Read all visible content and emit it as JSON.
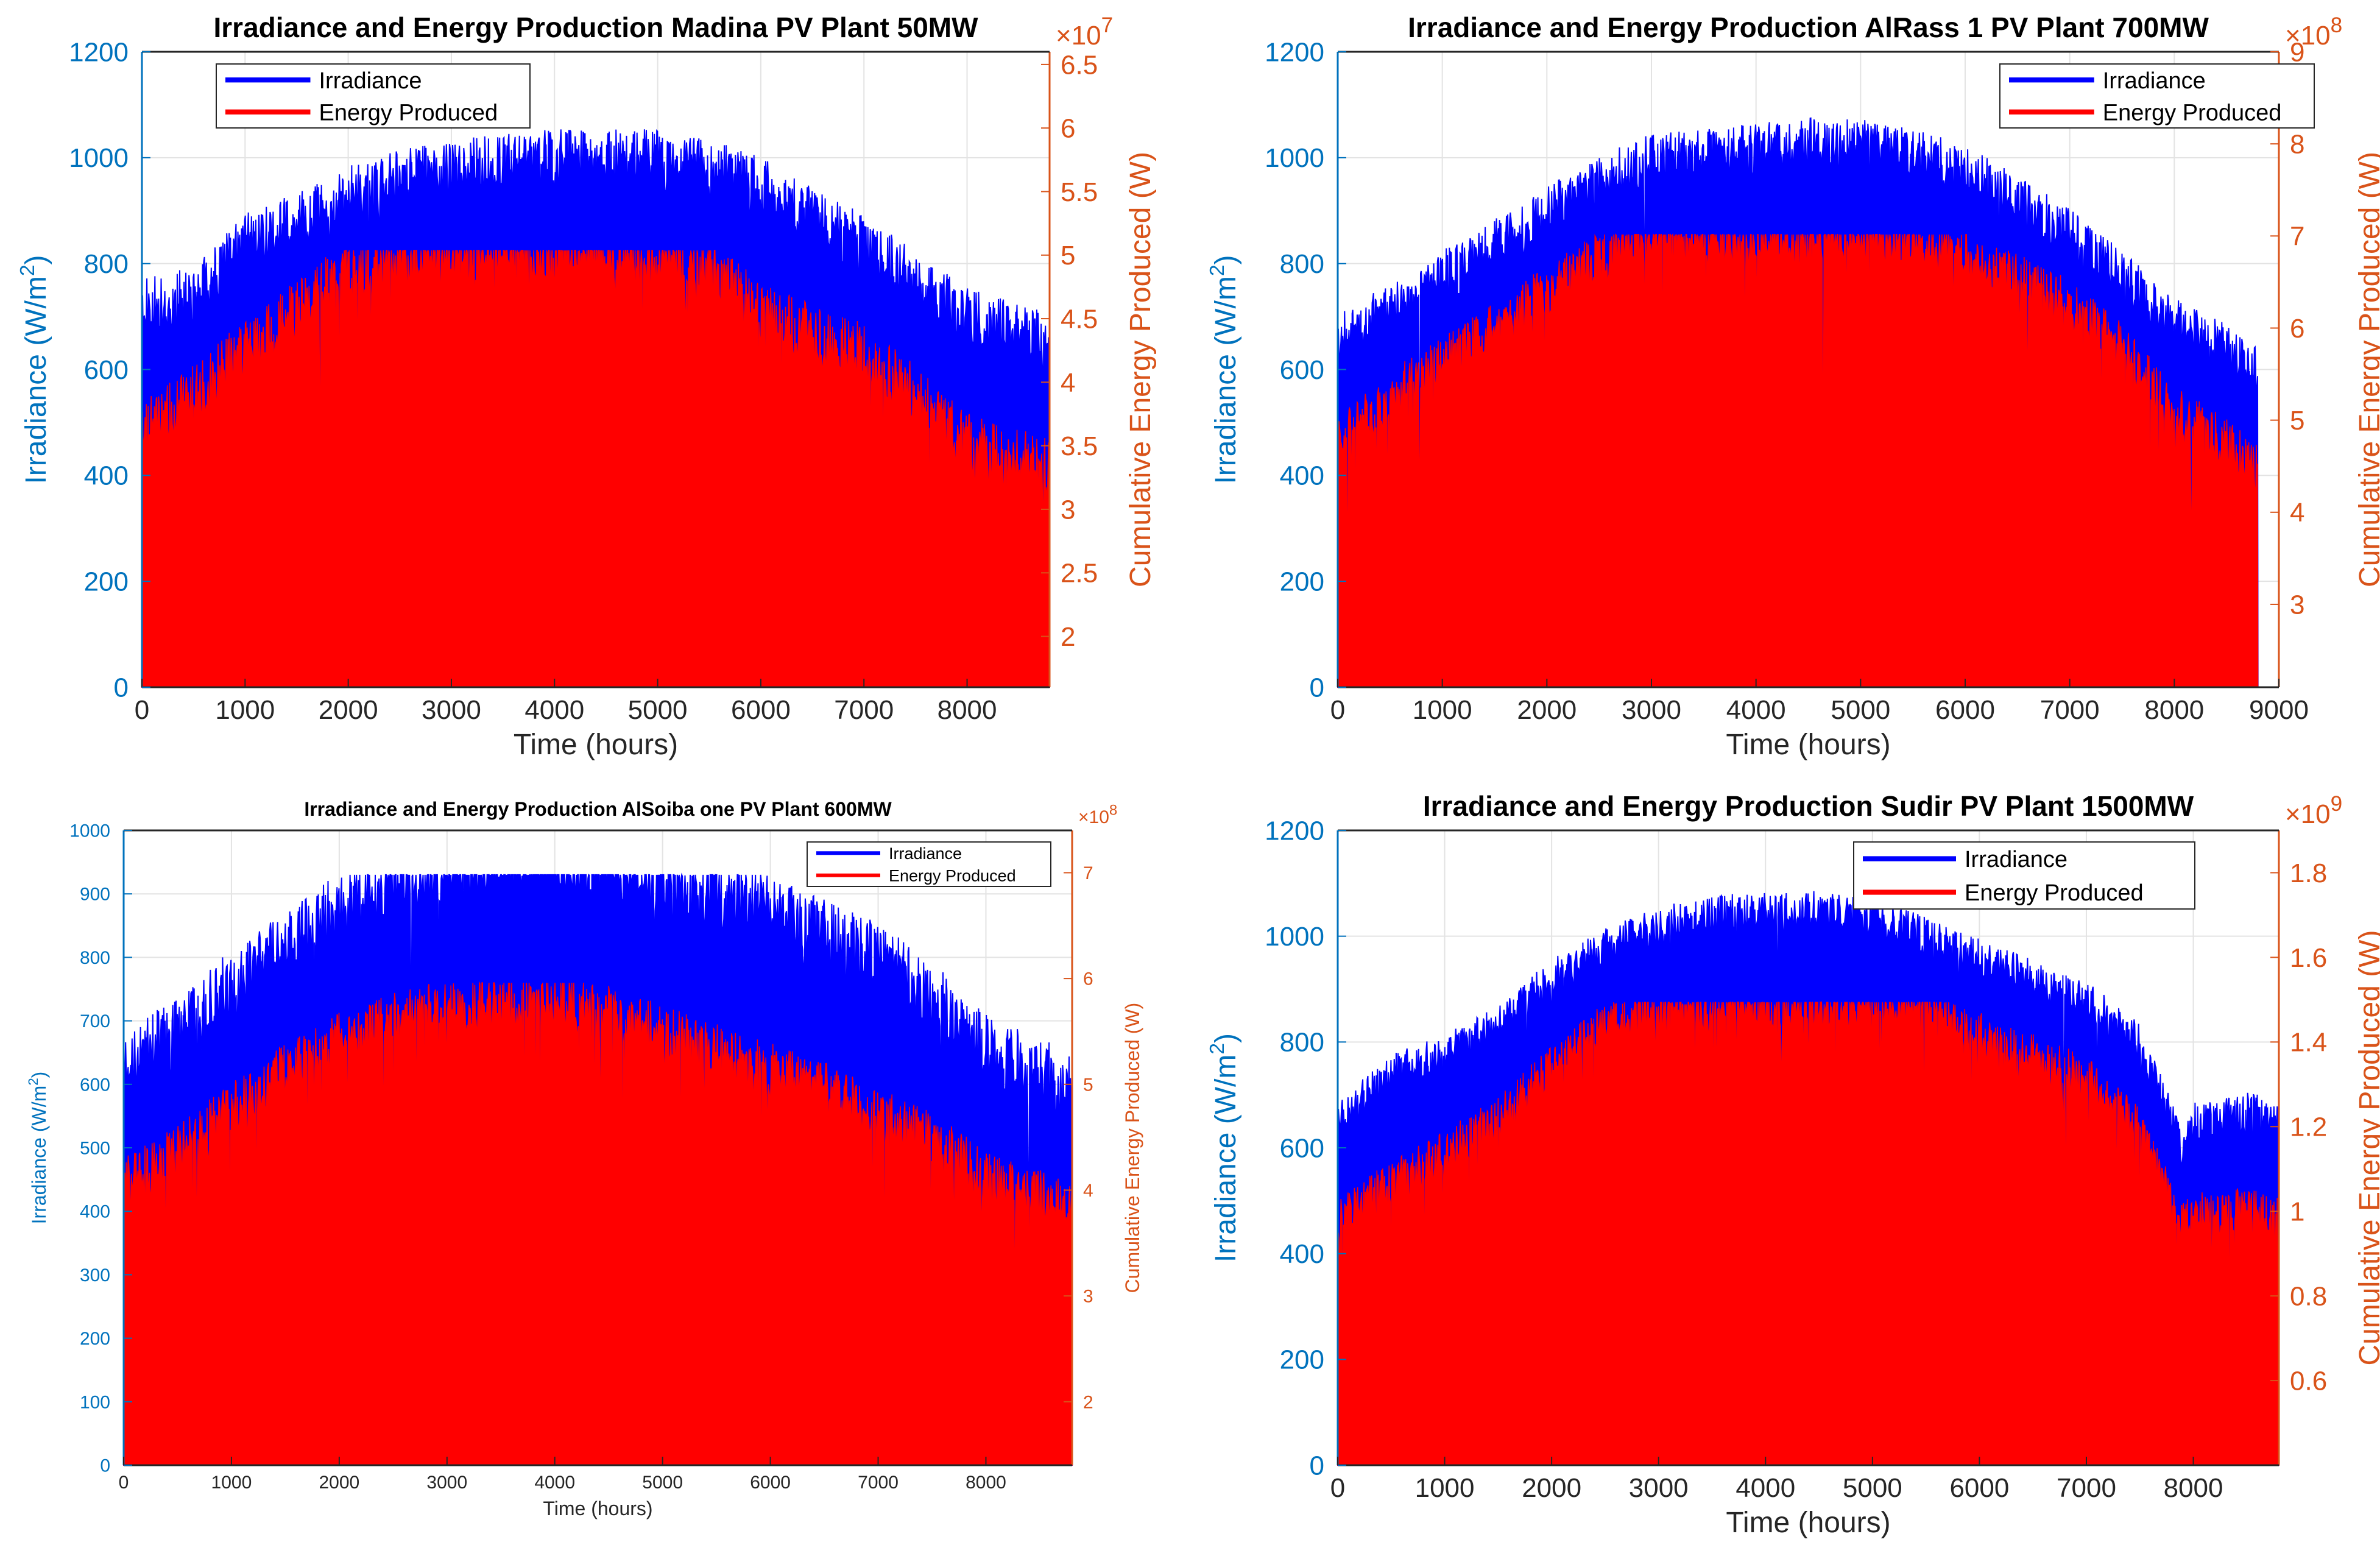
{
  "colors": {
    "irradiance": "#0000ff",
    "energy": "#ff0000",
    "left_axis": "#0072bd",
    "right_axis": "#d95319",
    "grid": "#e3e3e3",
    "text": "#262626"
  },
  "chart_data": [
    {
      "type": "area",
      "title": "Irradiance and Energy Production Madina PV Plant 50MW",
      "xlabel": "Time (hours)",
      "ylabel": "Irradiance (W/m²)",
      "ylabel_base": "Irradiance (W/m",
      "ylabel_sup": "2",
      "ylabel_close": ")",
      "y2label": "Cumulative Energy Produced (W)",
      "y2_multiplier": "×10",
      "y2_exponent": "7",
      "xlim": [
        0,
        8800
      ],
      "ylim": [
        0,
        1200
      ],
      "y2lim": [
        1.6,
        6.6
      ],
      "x_ticks": [
        0,
        1000,
        2000,
        3000,
        4000,
        5000,
        6000,
        7000,
        8000
      ],
      "x_tick_labels": [
        "0",
        "1000",
        "2000",
        "3000",
        "4000",
        "5000",
        "6000",
        "7000",
        "8000"
      ],
      "y_ticks": [
        0,
        200,
        400,
        600,
        800,
        1000,
        1200
      ],
      "y_tick_labels": [
        "0",
        "200",
        "400",
        "600",
        "800",
        "1000",
        "1200"
      ],
      "y2_ticks": [
        2,
        2.5,
        3,
        3.5,
        4,
        4.5,
        5,
        5.5,
        6,
        6.5
      ],
      "y2_tick_labels": [
        "2",
        "2.5",
        "3",
        "3.5",
        "4",
        "4.5",
        "5",
        "5.5",
        "6",
        "6.5"
      ],
      "grid": true,
      "legend_position": "top-left",
      "legend": [
        "Irradiance",
        "Energy Produced"
      ],
      "irradiance_envelope": {
        "x": [
          0,
          500,
          1000,
          1500,
          2000,
          2500,
          3000,
          3500,
          4000,
          4500,
          5000,
          5500,
          6000,
          6500,
          7000,
          7500,
          8000,
          8500,
          8800
        ],
        "values": [
          720,
          740,
          840,
          880,
          930,
          960,
          980,
          990,
          1000,
          1000,
          1000,
          980,
          950,
          890,
          840,
          770,
          700,
          670,
          660
        ]
      },
      "energy_envelope": {
        "x": [
          0,
          500,
          1000,
          1500,
          2000,
          2500,
          3000,
          3500,
          4000,
          4500,
          5000,
          5500,
          6000,
          6500,
          7000,
          7500,
          8000,
          8500,
          8800
        ],
        "values": [
          490,
          560,
          650,
          720,
          800,
          820,
          825,
          825,
          825,
          825,
          825,
          800,
          720,
          680,
          640,
          560,
          470,
          440,
          420
        ]
      },
      "irradiance_min": 470,
      "energy_min": 300,
      "energy_cap": 825,
      "irr_amp": 60,
      "en_amp": 60,
      "seed": 11
    },
    {
      "type": "area",
      "title": "Irradiance and Energy Production AlRass 1 PV Plant 700MW",
      "xlabel": "Time (hours)",
      "ylabel": "Irradiance (W/m²)",
      "ylabel_base": "Irradiance (W/m",
      "ylabel_sup": "2",
      "ylabel_close": ")",
      "y2label": "Cumulative Energy Produced (W)",
      "y2_multiplier": "×10",
      "y2_exponent": "8",
      "xlim": [
        0,
        9000
      ],
      "ylim": [
        0,
        1200
      ],
      "y2lim": [
        2.1,
        9.0
      ],
      "x_ticks": [
        0,
        1000,
        2000,
        3000,
        4000,
        5000,
        6000,
        7000,
        8000,
        9000
      ],
      "x_tick_labels": [
        "0",
        "1000",
        "2000",
        "3000",
        "4000",
        "5000",
        "6000",
        "7000",
        "8000",
        "9000"
      ],
      "y_ticks": [
        0,
        200,
        400,
        600,
        800,
        1000,
        1200
      ],
      "y_tick_labels": [
        "0",
        "200",
        "400",
        "600",
        "800",
        "1000",
        "1200"
      ],
      "y2_ticks": [
        3,
        4,
        5,
        6,
        7,
        8,
        9
      ],
      "y2_tick_labels": [
        "3",
        "4",
        "5",
        "6",
        "7",
        "8",
        "9"
      ],
      "grid": true,
      "legend_position": "top-right",
      "legend": [
        "Irradiance",
        "Energy Produced"
      ],
      "irradiance_envelope": {
        "x": [
          0,
          500,
          1000,
          1500,
          2000,
          2500,
          3000,
          3500,
          4000,
          4500,
          5000,
          5500,
          6000,
          6500,
          7000,
          7500,
          8000,
          8500,
          8800
        ],
        "values": [
          660,
          720,
          780,
          840,
          900,
          960,
          1000,
          1010,
          1020,
          1030,
          1030,
          1010,
          980,
          920,
          860,
          780,
          690,
          640,
          600
        ]
      },
      "energy_envelope": {
        "x": [
          0,
          500,
          1000,
          1500,
          2000,
          2500,
          3000,
          3500,
          4000,
          4500,
          5000,
          5500,
          6000,
          6500,
          7000,
          7500,
          8000,
          8500,
          8800
        ],
        "values": [
          470,
          560,
          620,
          690,
          760,
          820,
          855,
          855,
          855,
          855,
          855,
          855,
          820,
          780,
          730,
          650,
          530,
          470,
          420
        ]
      },
      "irradiance_min": 450,
      "energy_min": 330,
      "energy_cap": 855,
      "irr_amp": 50,
      "en_amp": 50,
      "seed": 23
    },
    {
      "type": "area",
      "title": "Irradiance and Energy Production AlSoiba one PV Plant 600MW",
      "xlabel": "Time (hours)",
      "ylabel": "Irradiance (W/m²)",
      "ylabel_base": "Irradiance (W/m",
      "ylabel_sup": "2",
      "ylabel_close": ")",
      "y2label": "Cumulative Energy Produced (W)",
      "y2_multiplier": "×10",
      "y2_exponent": "8",
      "xlim": [
        0,
        8800
      ],
      "ylim": [
        0,
        1000
      ],
      "y2lim": [
        1.4,
        7.4
      ],
      "x_ticks": [
        0,
        1000,
        2000,
        3000,
        4000,
        5000,
        6000,
        7000,
        8000
      ],
      "x_tick_labels": [
        "0",
        "1000",
        "2000",
        "3000",
        "4000",
        "5000",
        "6000",
        "7000",
        "8000"
      ],
      "y_ticks": [
        0,
        100,
        200,
        300,
        400,
        500,
        600,
        700,
        800,
        900,
        1000
      ],
      "y_tick_labels": [
        "0",
        "100",
        "200",
        "300",
        "400",
        "500",
        "600",
        "700",
        "800",
        "900",
        "1000"
      ],
      "y2_ticks": [
        2,
        3,
        4,
        5,
        6,
        7
      ],
      "y2_tick_labels": [
        "2",
        "3",
        "4",
        "5",
        "6",
        "7"
      ],
      "grid": true,
      "legend_position": "top-right",
      "legend": [
        "Irradiance",
        "Energy Produced"
      ],
      "irradiance_envelope": {
        "x": [
          0,
          500,
          1000,
          1500,
          2000,
          2500,
          3000,
          3500,
          4000,
          4500,
          5000,
          5500,
          6000,
          6500,
          7000,
          7500,
          8000,
          8500,
          8800
        ],
        "values": [
          640,
          680,
          760,
          820,
          880,
          920,
          950,
          960,
          960,
          950,
          920,
          900,
          880,
          840,
          800,
          740,
          660,
          620,
          600
        ]
      },
      "energy_envelope": {
        "x": [
          0,
          500,
          1000,
          1500,
          2000,
          2500,
          3000,
          3500,
          4000,
          4500,
          5000,
          5500,
          6000,
          6500,
          7000,
          7500,
          8000,
          8500,
          8800
        ],
        "values": [
          450,
          500,
          570,
          630,
          680,
          710,
          730,
          735,
          740,
          720,
          690,
          660,
          630,
          600,
          560,
          520,
          460,
          430,
          410
        ]
      },
      "irradiance_min": 360,
      "energy_min": 280,
      "energy_cap": 760,
      "irr_amp": 60,
      "en_amp": 45,
      "seed": 37
    },
    {
      "type": "area",
      "title": "Irradiance and Energy Production Sudir PV Plant 1500MW",
      "xlabel": "Time (hours)",
      "ylabel": "Irradiance (W/m²)",
      "ylabel_base": "Irradiance (W/m",
      "ylabel_sup": "2",
      "ylabel_close": ")",
      "y2label": "Cumulative Energy Produced (W)",
      "y2_multiplier": "×10",
      "y2_exponent": "9",
      "xlim": [
        0,
        8800
      ],
      "ylim": [
        0,
        1200
      ],
      "y2lim": [
        0.4,
        1.9
      ],
      "x_ticks": [
        0,
        1000,
        2000,
        3000,
        4000,
        5000,
        6000,
        7000,
        8000
      ],
      "x_tick_labels": [
        "0",
        "1000",
        "2000",
        "3000",
        "4000",
        "5000",
        "6000",
        "7000",
        "8000"
      ],
      "y_ticks": [
        0,
        200,
        400,
        600,
        800,
        1000,
        1200
      ],
      "y_tick_labels": [
        "0",
        "200",
        "400",
        "600",
        "800",
        "1000",
        "1200"
      ],
      "y2_ticks": [
        0.6,
        0.8,
        1.0,
        1.2,
        1.4,
        1.6,
        1.8
      ],
      "y2_tick_labels": [
        "0.6",
        "0.8",
        "1",
        "1.2",
        "1.4",
        "1.6",
        "1.8"
      ],
      "grid": true,
      "legend_position": "top-right",
      "legend": [
        "Irradiance",
        "Energy Produced"
      ],
      "irradiance_envelope": {
        "x": [
          0,
          500,
          1000,
          1500,
          2000,
          2500,
          3000,
          3500,
          4000,
          4500,
          5000,
          5500,
          6000,
          6500,
          7000,
          7500,
          7900,
          8000,
          8500,
          8800
        ],
        "values": [
          660,
          740,
          780,
          840,
          920,
          980,
          1020,
          1040,
          1050,
          1050,
          1040,
          1000,
          960,
          920,
          880,
          800,
          600,
          650,
          670,
          660
        ]
      },
      "energy_envelope": {
        "x": [
          0,
          500,
          1000,
          1500,
          2000,
          2500,
          3000,
          3500,
          4000,
          4500,
          5000,
          5500,
          6000,
          6500,
          7000,
          7500,
          7900,
          8000,
          8500,
          8800
        ],
        "values": [
          470,
          540,
          600,
          660,
          760,
          840,
          875,
          875,
          875,
          875,
          875,
          875,
          820,
          780,
          740,
          640,
          460,
          480,
          490,
          470
        ]
      },
      "irradiance_min": 500,
      "energy_min": 340,
      "energy_cap": 875,
      "irr_amp": 40,
      "en_amp": 45,
      "seed": 53
    }
  ]
}
